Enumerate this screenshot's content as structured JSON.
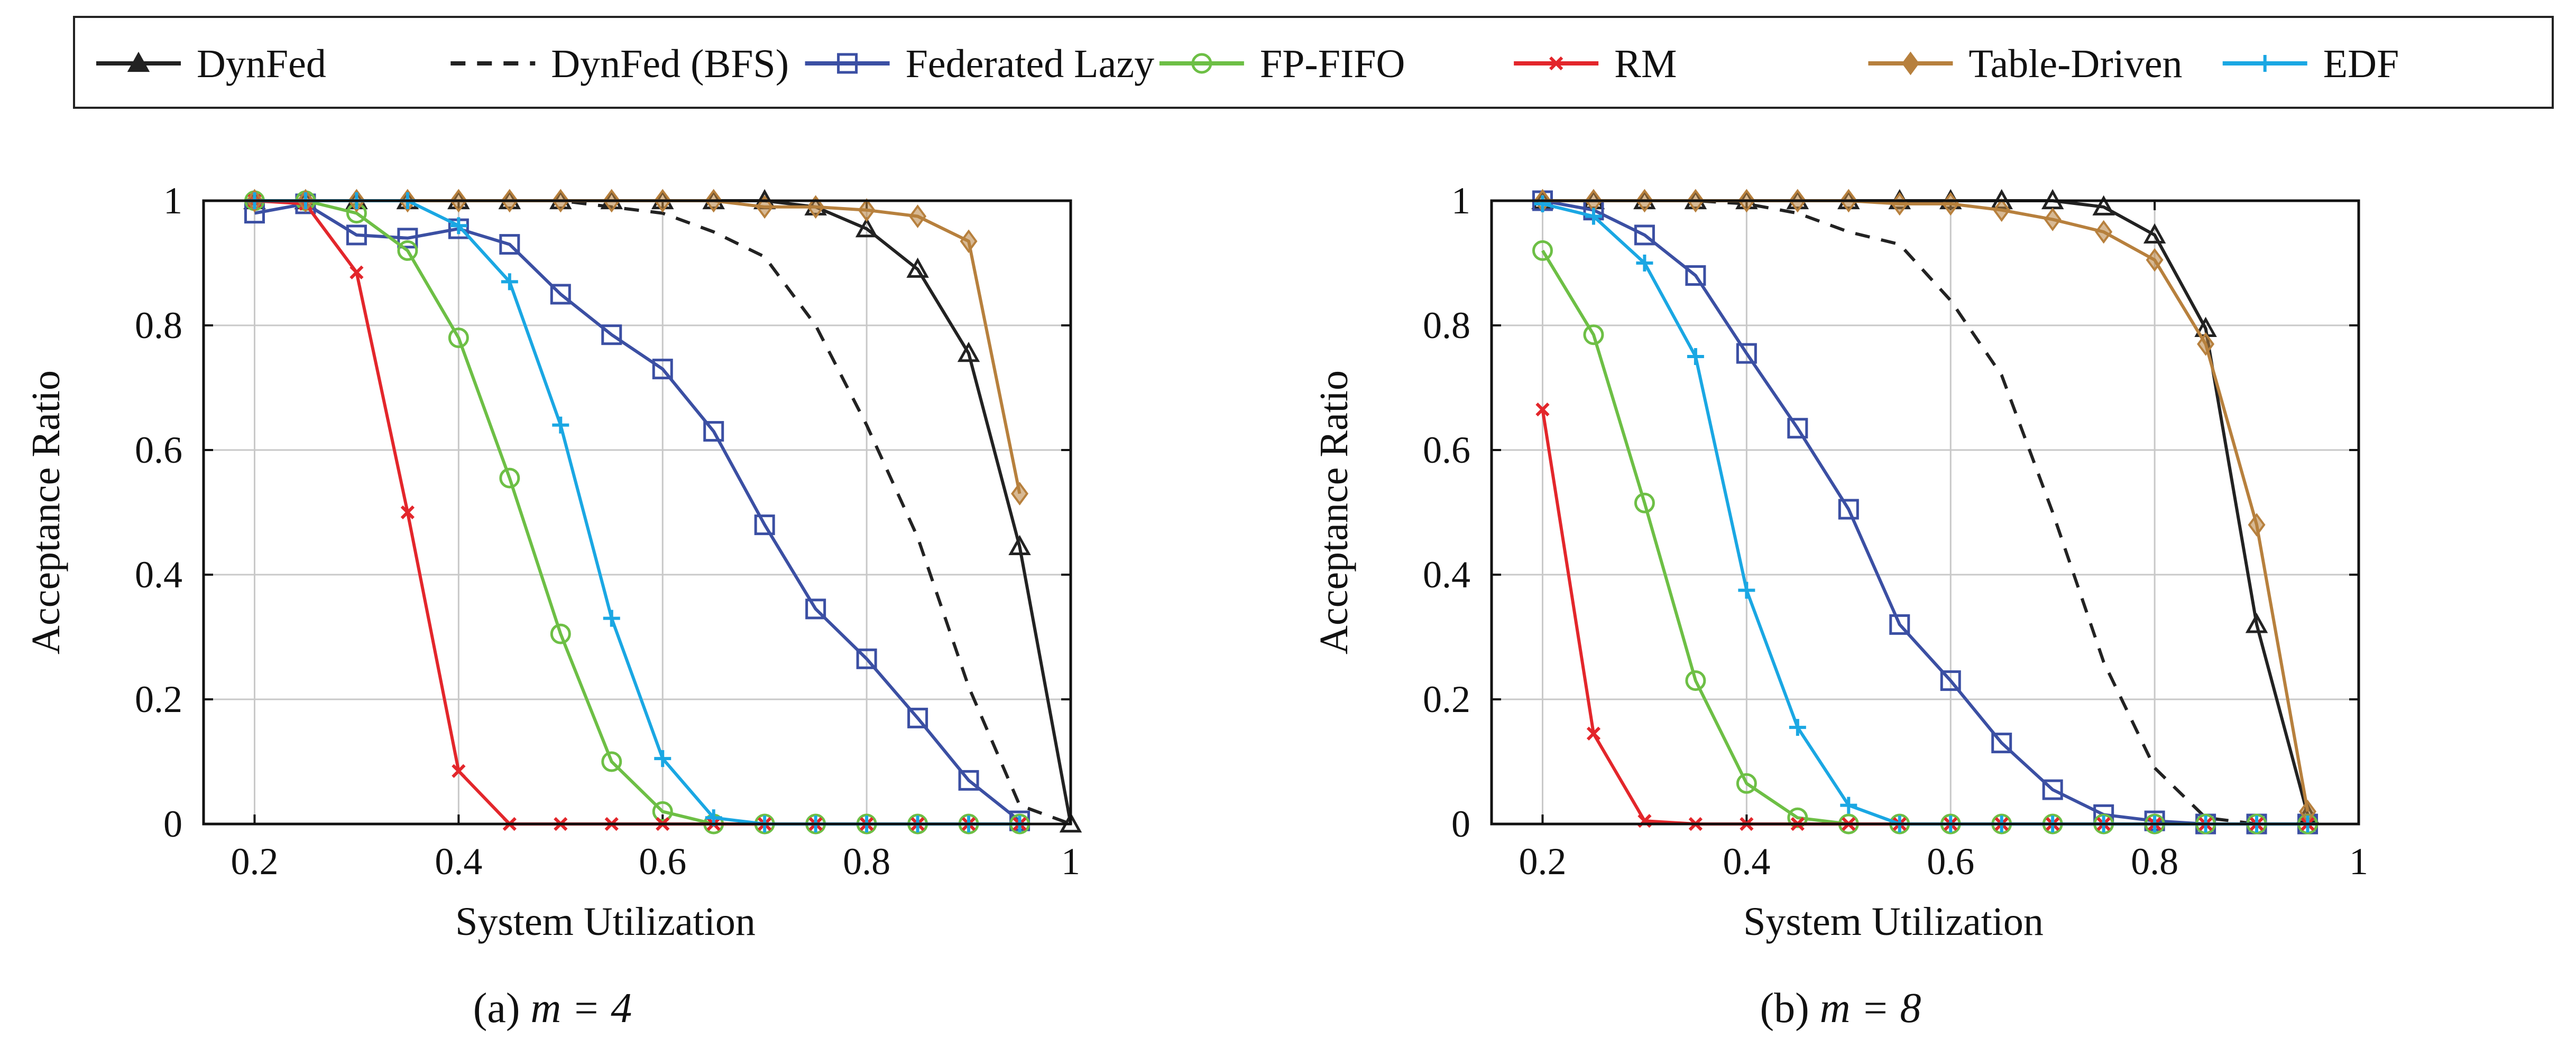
{
  "legend": [
    {
      "name": "DynFed",
      "color": "#222222",
      "dash": "",
      "marker": "triangle-filled"
    },
    {
      "name": "DynFed (BFS)",
      "color": "#222222",
      "dash": "28,22",
      "marker": "none"
    },
    {
      "name": "Federated Lazy",
      "color": "#3b4fa3",
      "dash": "",
      "marker": "square"
    },
    {
      "name": "FP-FIFO",
      "color": "#6dbf45",
      "dash": "",
      "marker": "circle"
    },
    {
      "name": "RM",
      "color": "#e3262b",
      "dash": "",
      "marker": "x"
    },
    {
      "name": "Table-Driven",
      "color": "#b7803d",
      "dash": "",
      "marker": "diamond-filled"
    },
    {
      "name": "EDF",
      "color": "#1aa7e3",
      "dash": "",
      "marker": "plus"
    }
  ],
  "chart_data": [
    {
      "type": "line",
      "caption_prefix": "(a) ",
      "caption_math": "m = 4",
      "xlabel": "System Utilization",
      "ylabel": "Acceptance Ratio",
      "xlim": [
        0.15,
        1.0
      ],
      "ylim": [
        0,
        1
      ],
      "xticks": [
        "0.2",
        "0.4",
        "0.6",
        "0.8",
        "1"
      ],
      "yticks": [
        "0",
        "0.2",
        "0.4",
        "0.6",
        "0.8",
        "1"
      ],
      "grid": true,
      "series": [
        {
          "name": "DynFed",
          "x": [
            0.2,
            0.25,
            0.3,
            0.35,
            0.4,
            0.45,
            0.5,
            0.55,
            0.6,
            0.65,
            0.7,
            0.75,
            0.8,
            0.85,
            0.9,
            0.95,
            1.0
          ],
          "y": [
            1,
            1,
            1,
            1,
            1,
            1,
            1,
            1,
            1,
            1,
            1,
            0.99,
            0.955,
            0.89,
            0.755,
            0.445,
            0
          ]
        },
        {
          "name": "DynFed (BFS)",
          "x": [
            0.2,
            0.25,
            0.3,
            0.35,
            0.4,
            0.45,
            0.5,
            0.55,
            0.6,
            0.65,
            0.7,
            0.75,
            0.8,
            0.85,
            0.9,
            0.95,
            1.0
          ],
          "y": [
            1,
            1,
            1,
            1,
            1,
            1,
            1,
            0.99,
            0.98,
            0.95,
            0.91,
            0.8,
            0.64,
            0.46,
            0.22,
            0.03,
            0
          ]
        },
        {
          "name": "Federated Lazy",
          "x": [
            0.2,
            0.25,
            0.3,
            0.35,
            0.4,
            0.45,
            0.5,
            0.55,
            0.6,
            0.65,
            0.7,
            0.75,
            0.8,
            0.85,
            0.9,
            0.95
          ],
          "y": [
            0.98,
            0.995,
            0.945,
            0.94,
            0.955,
            0.93,
            0.85,
            0.785,
            0.73,
            0.63,
            0.48,
            0.345,
            0.265,
            0.17,
            0.07,
            0.005
          ]
        },
        {
          "name": "FP-FIFO",
          "x": [
            0.2,
            0.25,
            0.3,
            0.35,
            0.4,
            0.45,
            0.5,
            0.55,
            0.6,
            0.65,
            0.7,
            0.75,
            0.8,
            0.85,
            0.9,
            0.95
          ],
          "y": [
            1,
            1,
            0.98,
            0.92,
            0.78,
            0.555,
            0.305,
            0.1,
            0.02,
            0,
            0,
            0,
            0,
            0,
            0,
            0
          ]
        },
        {
          "name": "RM",
          "x": [
            0.2,
            0.25,
            0.3,
            0.35,
            0.4,
            0.45,
            0.5,
            0.55,
            0.6,
            0.65,
            0.7,
            0.75,
            0.8,
            0.85,
            0.9,
            0.95
          ],
          "y": [
            1,
            0.995,
            0.885,
            0.5,
            0.085,
            0,
            0,
            0,
            0,
            0,
            0,
            0,
            0,
            0,
            0,
            0
          ]
        },
        {
          "name": "Table-Driven",
          "x": [
            0.2,
            0.25,
            0.3,
            0.35,
            0.4,
            0.45,
            0.5,
            0.55,
            0.6,
            0.65,
            0.7,
            0.75,
            0.8,
            0.85,
            0.9,
            0.95
          ],
          "y": [
            1,
            1,
            1,
            1,
            1,
            1,
            1,
            1,
            1,
            1,
            0.99,
            0.99,
            0.985,
            0.975,
            0.935,
            0.53
          ]
        },
        {
          "name": "EDF",
          "x": [
            0.2,
            0.25,
            0.3,
            0.35,
            0.4,
            0.45,
            0.5,
            0.55,
            0.6,
            0.65,
            0.7,
            0.75,
            0.8,
            0.85,
            0.9,
            0.95
          ],
          "y": [
            1,
            1,
            1,
            1,
            0.96,
            0.87,
            0.64,
            0.33,
            0.105,
            0.01,
            0,
            0,
            0,
            0,
            0,
            0
          ]
        }
      ]
    },
    {
      "type": "line",
      "caption_prefix": "(b) ",
      "caption_math": "m = 8",
      "xlabel": "System Utilization",
      "ylabel": "Acceptance Ratio",
      "xlim": [
        0.15,
        1.0
      ],
      "ylim": [
        0,
        1
      ],
      "xticks": [
        "0.2",
        "0.4",
        "0.6",
        "0.8",
        "1"
      ],
      "yticks": [
        "0",
        "0.2",
        "0.4",
        "0.6",
        "0.8",
        "1"
      ],
      "grid": true,
      "series": [
        {
          "name": "DynFed",
          "x": [
            0.2,
            0.25,
            0.3,
            0.35,
            0.4,
            0.45,
            0.5,
            0.55,
            0.6,
            0.65,
            0.7,
            0.75,
            0.8,
            0.85,
            0.9,
            0.95
          ],
          "y": [
            1,
            1,
            1,
            1,
            1,
            1,
            1,
            1,
            1,
            1,
            1,
            0.99,
            0.945,
            0.795,
            0.32,
            0.015
          ]
        },
        {
          "name": "DynFed (BFS)",
          "x": [
            0.2,
            0.25,
            0.3,
            0.35,
            0.4,
            0.45,
            0.5,
            0.55,
            0.6,
            0.65,
            0.7,
            0.75,
            0.8,
            0.85,
            0.9,
            0.95
          ],
          "y": [
            1,
            1,
            1,
            1,
            0.995,
            0.98,
            0.95,
            0.93,
            0.84,
            0.72,
            0.5,
            0.26,
            0.09,
            0.01,
            0,
            0
          ]
        },
        {
          "name": "Federated Lazy",
          "x": [
            0.2,
            0.25,
            0.3,
            0.35,
            0.4,
            0.45,
            0.5,
            0.55,
            0.6,
            0.65,
            0.7,
            0.75,
            0.8,
            0.85,
            0.9,
            0.95
          ],
          "y": [
            1,
            0.985,
            0.945,
            0.88,
            0.755,
            0.635,
            0.505,
            0.32,
            0.23,
            0.13,
            0.055,
            0.015,
            0.005,
            0,
            0,
            0
          ]
        },
        {
          "name": "FP-FIFO",
          "x": [
            0.2,
            0.25,
            0.3,
            0.35,
            0.4,
            0.45,
            0.5,
            0.55,
            0.6,
            0.65,
            0.7,
            0.75,
            0.8,
            0.85,
            0.9,
            0.95
          ],
          "y": [
            0.92,
            0.785,
            0.515,
            0.23,
            0.065,
            0.01,
            0,
            0,
            0,
            0,
            0,
            0,
            0,
            0,
            0,
            0
          ]
        },
        {
          "name": "RM",
          "x": [
            0.2,
            0.25,
            0.3,
            0.35,
            0.4,
            0.45,
            0.5,
            0.55,
            0.6,
            0.65,
            0.7,
            0.75,
            0.8,
            0.85,
            0.9,
            0.95
          ],
          "y": [
            0.665,
            0.145,
            0.005,
            0,
            0,
            0,
            0,
            0,
            0,
            0,
            0,
            0,
            0,
            0,
            0,
            0
          ]
        },
        {
          "name": "Table-Driven",
          "x": [
            0.2,
            0.25,
            0.3,
            0.35,
            0.4,
            0.45,
            0.5,
            0.55,
            0.6,
            0.65,
            0.7,
            0.75,
            0.8,
            0.85,
            0.9,
            0.95
          ],
          "y": [
            1,
            1,
            1,
            1,
            1,
            1,
            1,
            0.995,
            0.995,
            0.985,
            0.97,
            0.95,
            0.905,
            0.77,
            0.48,
            0.02
          ]
        },
        {
          "name": "EDF",
          "x": [
            0.2,
            0.25,
            0.3,
            0.35,
            0.4,
            0.45,
            0.5,
            0.55,
            0.6,
            0.65,
            0.7,
            0.75,
            0.8,
            0.85,
            0.9,
            0.95
          ],
          "y": [
            0.995,
            0.975,
            0.9,
            0.75,
            0.375,
            0.155,
            0.03,
            0,
            0,
            0,
            0,
            0,
            0,
            0,
            0,
            0
          ]
        }
      ]
    }
  ]
}
